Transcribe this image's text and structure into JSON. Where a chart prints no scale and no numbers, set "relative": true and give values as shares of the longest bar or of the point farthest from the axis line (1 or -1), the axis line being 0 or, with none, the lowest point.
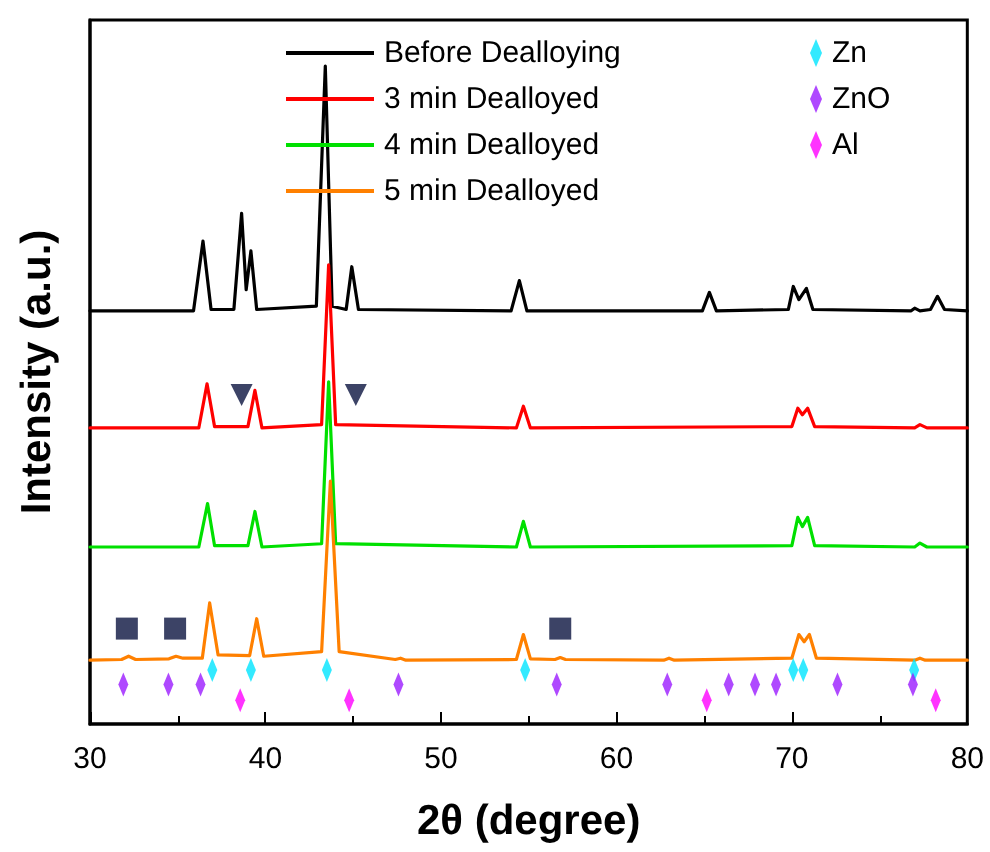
{
  "chart_data": {
    "type": "line",
    "xlabel": "2θ (degree)",
    "ylabel": "Intensity (a.u.)",
    "relative": true,
    "xlim": [
      30,
      80
    ],
    "xticks": [
      30,
      40,
      50,
      60,
      70,
      80
    ],
    "legend": "top",
    "grid": false,
    "line_style": "solid",
    "series": [
      {
        "name": "Before Dealloying",
        "color": "#000000",
        "x": [
          30,
          35.9,
          36.44,
          36.9,
          38.2,
          38.64,
          38.9,
          39.17,
          39.5,
          42.9,
          43.41,
          43.8,
          44.6,
          44.92,
          45.3,
          54.0,
          54.47,
          54.9,
          64.9,
          65.3,
          65.7,
          69.8,
          70.08,
          70.4,
          70.83,
          71.2,
          76.8,
          77.0,
          77.3,
          77.9,
          78.3,
          78.7,
          80
        ],
        "values": [
          0.628,
          0.628,
          0.734,
          0.63,
          0.63,
          0.776,
          0.66,
          0.719,
          0.63,
          0.635,
          1.0,
          0.635,
          0.63,
          0.695,
          0.63,
          0.628,
          0.674,
          0.628,
          0.628,
          0.656,
          0.628,
          0.63,
          0.665,
          0.645,
          0.662,
          0.63,
          0.628,
          0.632,
          0.628,
          0.63,
          0.65,
          0.63,
          0.628
        ]
      },
      {
        "name": "3 min Dealloyed",
        "color": "#ff0000",
        "x": [
          30,
          36.2,
          36.67,
          37.1,
          39.0,
          39.4,
          39.8,
          43.2,
          43.6,
          44.0,
          54.3,
          54.7,
          55.1,
          70.0,
          70.34,
          70.6,
          70.9,
          71.3,
          77.0,
          77.3,
          77.7,
          80
        ],
        "values": [
          0.45,
          0.45,
          0.517,
          0.452,
          0.452,
          0.507,
          0.45,
          0.455,
          0.698,
          0.455,
          0.45,
          0.483,
          0.45,
          0.452,
          0.48,
          0.47,
          0.48,
          0.452,
          0.45,
          0.455,
          0.45,
          0.45
        ]
      },
      {
        "name": "4 min Dealloyed",
        "color": "#00e000",
        "x": [
          30,
          36.2,
          36.7,
          37.1,
          39.0,
          39.4,
          39.8,
          43.2,
          43.6,
          44.0,
          54.3,
          54.7,
          55.1,
          70.0,
          70.34,
          70.6,
          70.9,
          71.3,
          77.0,
          77.3,
          77.7,
          80
        ],
        "values": [
          0.269,
          0.269,
          0.335,
          0.271,
          0.271,
          0.323,
          0.269,
          0.274,
          0.52,
          0.274,
          0.269,
          0.308,
          0.269,
          0.271,
          0.314,
          0.3,
          0.314,
          0.271,
          0.269,
          0.275,
          0.269,
          0.269
        ]
      },
      {
        "name": "5 min Dealloyed",
        "color": "#ff8000",
        "x": [
          30,
          31.8,
          32.2,
          32.6,
          34.5,
          34.9,
          35.3,
          36.4,
          36.82,
          37.3,
          39.1,
          39.5,
          39.9,
          43.2,
          43.7,
          44.2,
          47.4,
          47.7,
          48,
          54.3,
          54.7,
          55.1,
          56.5,
          56.8,
          57.1,
          62.7,
          63,
          63.3,
          70.0,
          70.4,
          70.7,
          71.0,
          71.4,
          77.0,
          77.3,
          77.6,
          80
        ],
        "values": [
          0.097,
          0.098,
          0.103,
          0.098,
          0.099,
          0.103,
          0.1,
          0.1,
          0.184,
          0.105,
          0.104,
          0.16,
          0.103,
          0.11,
          0.369,
          0.11,
          0.098,
          0.1,
          0.097,
          0.098,
          0.136,
          0.099,
          0.098,
          0.101,
          0.098,
          0.097,
          0.1,
          0.097,
          0.1,
          0.136,
          0.125,
          0.136,
          0.1,
          0.097,
          0.1,
          0.097,
          0.097
        ]
      },
      {
        "type": "scatter",
        "marker": "triangle",
        "color": "#0b1440",
        "x": [
          38.64,
          45.15
        ],
        "values": [
          0.5,
          0.5
        ]
      },
      {
        "type": "scatter",
        "marker": "square",
        "color": "#0b1440",
        "x": [
          32.1,
          34.85,
          56.8
        ],
        "values": [
          0.145,
          0.145,
          0.145
        ]
      },
      {
        "type": "scatter",
        "marker": "diamond",
        "name": "Zn",
        "color": "#00e5ff",
        "x": [
          36.97,
          39.17,
          43.5,
          54.8,
          70.08,
          70.65,
          76.97
        ],
        "values": [
          0.082,
          0.082,
          0.082,
          0.082,
          0.082,
          0.082,
          0.082
        ]
      },
      {
        "type": "scatter",
        "marker": "diamond",
        "name": "ZnO",
        "color": "#9b1cff",
        "x": [
          31.9,
          34.47,
          36.3,
          47.58,
          56.6,
          62.9,
          66.4,
          67.9,
          69.1,
          72.6,
          76.9
        ],
        "values": [
          0.06,
          0.06,
          0.06,
          0.06,
          0.06,
          0.06,
          0.06,
          0.06,
          0.06,
          0.06,
          0.06
        ]
      },
      {
        "type": "scatter",
        "marker": "diamond",
        "name": "Al",
        "color": "#ff00ff",
        "x": [
          38.56,
          44.77,
          65.15,
          78.2
        ],
        "values": [
          0.036,
          0.036,
          0.036,
          0.036
        ]
      }
    ]
  }
}
